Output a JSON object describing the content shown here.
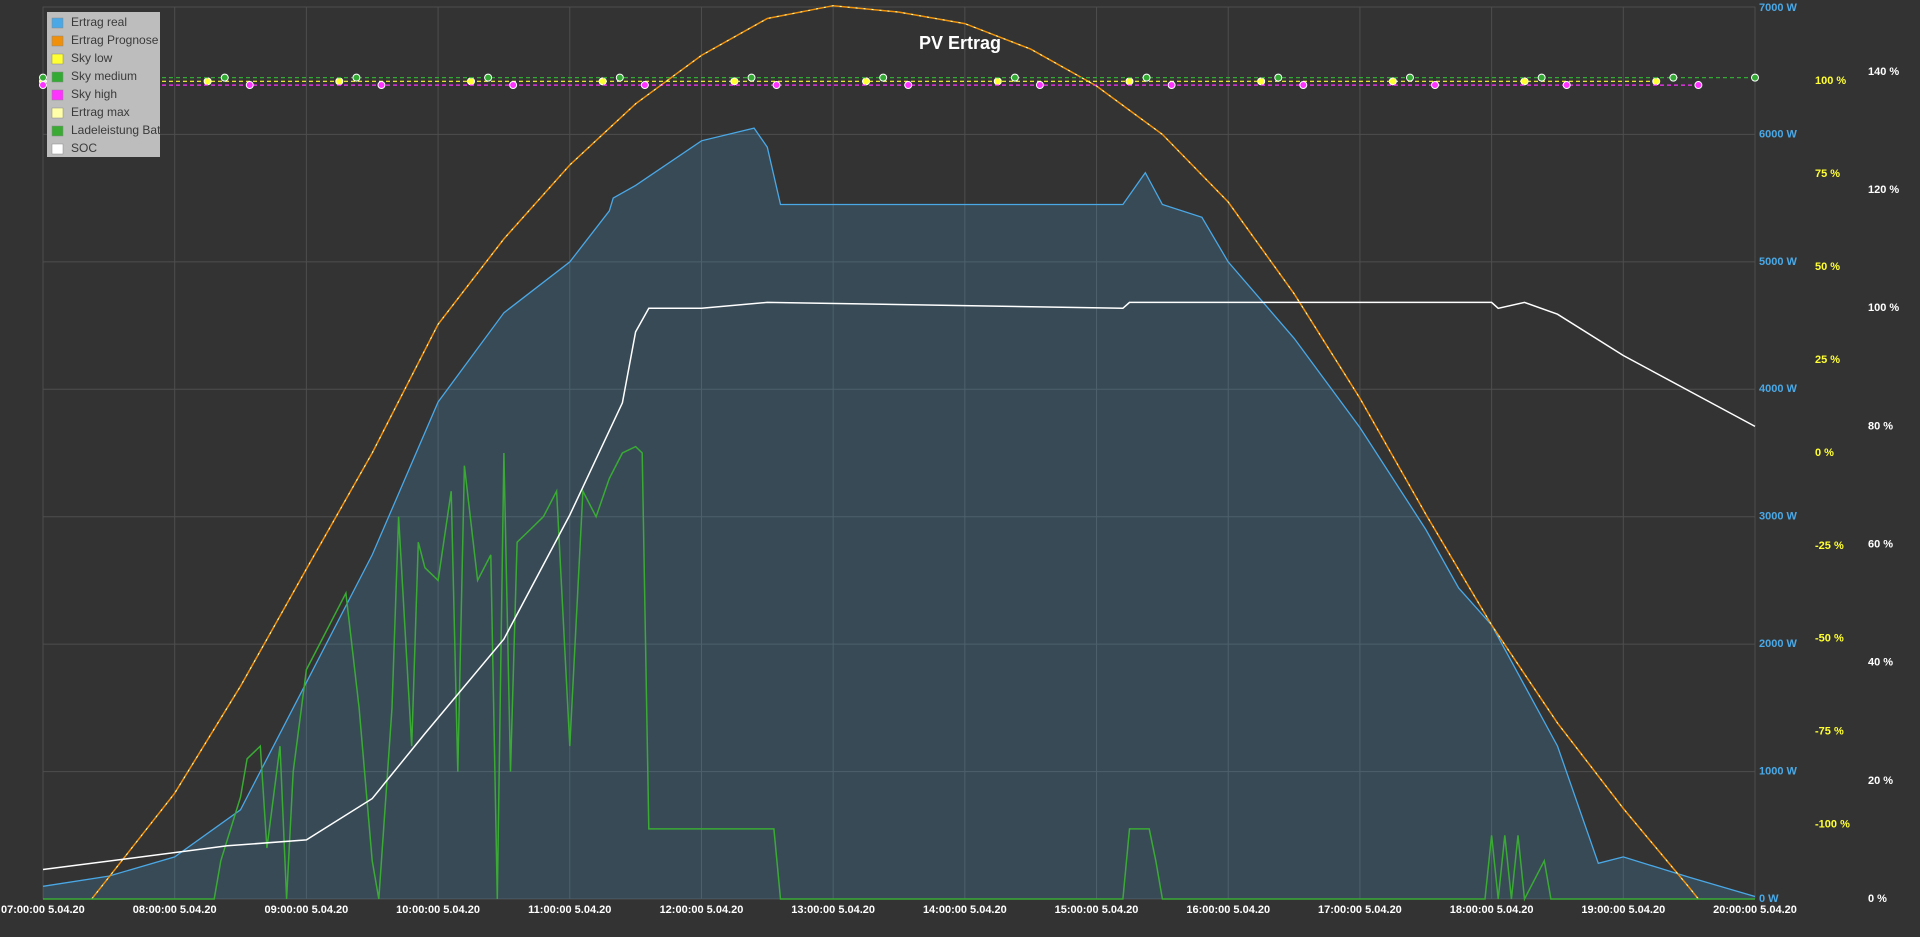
{
  "chart_data": {
    "type": "line",
    "title": "PV Ertrag",
    "xlim": [
      7,
      20
    ],
    "xticks": [
      {
        "value": 7,
        "label": "07:00:00 5.04.20"
      },
      {
        "value": 8,
        "label": "08:00:00 5.04.20"
      },
      {
        "value": 9,
        "label": "09:00:00 5.04.20"
      },
      {
        "value": 10,
        "label": "10:00:00 5.04.20"
      },
      {
        "value": 11,
        "label": "11:00:00 5.04.20"
      },
      {
        "value": 12,
        "label": "12:00:00 5.04.20"
      },
      {
        "value": 13,
        "label": "13:00:00 5.04.20"
      },
      {
        "value": 14,
        "label": "14:00:00 5.04.20"
      },
      {
        "value": 15,
        "label": "15:00:00 5.04.20"
      },
      {
        "value": 16,
        "label": "16:00:00 5.04.20"
      },
      {
        "value": 17,
        "label": "17:00:00 5.04.20"
      },
      {
        "value": 18,
        "label": "18:00:00 5.04.20"
      },
      {
        "value": 19,
        "label": "19:00:00 5.04.20"
      },
      {
        "value": 20,
        "label": "20:00:00 5.04.20"
      }
    ],
    "ylim": [
      0,
      7000
    ],
    "yticks": [
      {
        "value": 0,
        "label": "0 W"
      },
      {
        "value": 1000,
        "label": "1000 W"
      },
      {
        "value": 2000,
        "label": "2000 W"
      },
      {
        "value": 3000,
        "label": "3000 W"
      },
      {
        "value": 4000,
        "label": "4000 W"
      },
      {
        "value": 5000,
        "label": "5000 W"
      },
      {
        "value": 6000,
        "label": "6000 W"
      },
      {
        "value": 7000,
        "label": "7000 W"
      }
    ],
    "y2lim": [
      -120,
      120
    ],
    "y2ticks": [
      {
        "value": -100,
        "label": "-100 %"
      },
      {
        "value": -75,
        "label": "-75 %"
      },
      {
        "value": -50,
        "label": "-50 %"
      },
      {
        "value": -25,
        "label": "-25 %"
      },
      {
        "value": 0,
        "label": "0 %"
      },
      {
        "value": 25,
        "label": "25 %"
      },
      {
        "value": 50,
        "label": "50 %"
      },
      {
        "value": 75,
        "label": "75 %"
      },
      {
        "value": 100,
        "label": "100 %"
      }
    ],
    "y3lim": [
      0,
      151
    ],
    "y3ticks": [
      {
        "value": 0,
        "label": "0 %"
      },
      {
        "value": 20,
        "label": "20 %"
      },
      {
        "value": 40,
        "label": "40 %"
      },
      {
        "value": 60,
        "label": "60 %"
      },
      {
        "value": 80,
        "label": "80 %"
      },
      {
        "value": 100,
        "label": "100 %"
      },
      {
        "value": 120,
        "label": "120 %"
      },
      {
        "value": 140,
        "label": "140 %"
      }
    ],
    "grid": true,
    "legend": "top-left",
    "series": [
      {
        "name": "Ertrag real",
        "color": "#4aa8e6",
        "kind": "area",
        "x": [
          7,
          7.5,
          8,
          8.5,
          9,
          9.5,
          10,
          10.5,
          11,
          11.3,
          11.33,
          11.5,
          12,
          12.4,
          12.5,
          12.6,
          13,
          14,
          15,
          15.2,
          15.37,
          15.5,
          15.8,
          16,
          16.5,
          17,
          17.5,
          17.75,
          18,
          18.5,
          18.81,
          19,
          19.5,
          20
        ],
        "values": [
          100,
          180,
          330,
          700,
          1700,
          2700,
          3900,
          4600,
          5000,
          5400,
          5500,
          5600,
          5950,
          6050,
          5900,
          5450,
          5450,
          5450,
          5450,
          5450,
          5700,
          5450,
          5350,
          5000,
          4400,
          3700,
          2900,
          2440,
          2150,
          1200,
          280,
          330,
          170,
          20
        ]
      },
      {
        "name": "Ertrag Prognose",
        "color": "#f0900a",
        "kind": "line",
        "x": [
          7.37,
          7.5,
          8,
          8.5,
          9,
          9.5,
          10,
          10.5,
          11,
          11.5,
          12,
          12.5,
          13,
          13.5,
          14,
          14.5,
          15,
          15.5,
          16,
          16.5,
          17,
          17.5,
          18,
          18.5,
          19,
          19.5,
          19.57
        ],
        "values": [
          0,
          170,
          830,
          1670,
          2590,
          3500,
          4510,
          5180,
          5760,
          6240,
          6620,
          6910,
          7010,
          6960,
          6870,
          6670,
          6380,
          6000,
          5470,
          4750,
          3930,
          3020,
          2150,
          1380,
          710,
          90,
          0
        ]
      },
      {
        "name": "Sky low",
        "color": "#ffff33",
        "kind": "dots",
        "axis": "y2",
        "x": [
          7,
          8.25,
          9.25,
          10.25,
          11.25,
          12.25,
          13.25,
          14.25,
          15.25,
          16.25,
          17.25,
          18.25,
          19.25
        ],
        "values": [
          100,
          100,
          100,
          100,
          100,
          100,
          100,
          100,
          100,
          100,
          100,
          100,
          100
        ]
      },
      {
        "name": "Sky medium",
        "color": "#33aa33",
        "kind": "dots",
        "axis": "y2",
        "x": [
          7,
          8.38,
          9.38,
          10.38,
          11.38,
          12.38,
          13.38,
          14.38,
          15.38,
          16.38,
          17.38,
          18.38,
          19.38,
          20
        ],
        "values": [
          101,
          101,
          101,
          101,
          101,
          101,
          101,
          101,
          101,
          101,
          101,
          101,
          101,
          101
        ]
      },
      {
        "name": "Sky high",
        "color": "#ff33ff",
        "kind": "dots",
        "axis": "y2",
        "x": [
          7,
          8.57,
          9.57,
          10.57,
          11.57,
          12.57,
          13.57,
          14.57,
          15.57,
          16.57,
          17.57,
          18.57,
          19.57
        ],
        "values": [
          99,
          99,
          99,
          99,
          99,
          99,
          99,
          99,
          99,
          99,
          99,
          99,
          99
        ]
      },
      {
        "name": "Ertrag max",
        "color": "#ffffaa",
        "kind": "dashed",
        "x": [
          7.37,
          7.5,
          8,
          8.5,
          9,
          9.5,
          10,
          10.5,
          11,
          11.5,
          12,
          12.5,
          13,
          13.5,
          14,
          14.5,
          15,
          15.5,
          16,
          16.5,
          17,
          17.5,
          18,
          18.5,
          19,
          19.5,
          19.57
        ],
        "values": [
          0,
          170,
          830,
          1670,
          2590,
          3500,
          4510,
          5180,
          5760,
          6240,
          6620,
          6910,
          7010,
          6960,
          6870,
          6670,
          6380,
          6000,
          5470,
          4750,
          3930,
          3020,
          2150,
          1380,
          710,
          90,
          0
        ]
      },
      {
        "name": "Ladeleistung Bat",
        "color": "#3aaa35",
        "kind": "line",
        "x": [
          7,
          8.3,
          8.35,
          8.5,
          8.55,
          8.65,
          8.7,
          8.8,
          8.85,
          8.9,
          9.0,
          9.1,
          9.2,
          9.3,
          9.4,
          9.5,
          9.55,
          9.65,
          9.7,
          9.8,
          9.85,
          9.9,
          10.0,
          10.1,
          10.15,
          10.2,
          10.3,
          10.4,
          10.45,
          10.5,
          10.55,
          10.6,
          10.7,
          10.8,
          10.9,
          11.0,
          11.1,
          11.2,
          11.3,
          11.4,
          11.5,
          11.55,
          11.6,
          12.5,
          12.52,
          12.55,
          12.6,
          15.2,
          15.25,
          15.4,
          15.45,
          15.5,
          17.95,
          18.0,
          18.05,
          18.1,
          18.15,
          18.2,
          18.25,
          18.4,
          18.45,
          18.5,
          20
        ],
        "values": [
          0,
          0,
          300,
          800,
          1100,
          1200,
          400,
          1200,
          0,
          1000,
          1800,
          2000,
          2200,
          2400,
          1500,
          300,
          0,
          1500,
          3000,
          1200,
          2800,
          2600,
          2500,
          3200,
          1000,
          3400,
          2500,
          2700,
          0,
          3500,
          1000,
          2800,
          2900,
          3000,
          3200,
          1200,
          3200,
          3000,
          3300,
          3500,
          3550,
          3500,
          550,
          550,
          550,
          550,
          0,
          0,
          550,
          550,
          300,
          0,
          0,
          500,
          0,
          500,
          0,
          500,
          0,
          300,
          0,
          0,
          0
        ]
      },
      {
        "name": "SOC",
        "color": "#ffffff",
        "kind": "line",
        "axis": "y3",
        "x": [
          7,
          8.4,
          9.0,
          9.5,
          9.9,
          10.5,
          11.0,
          11.4,
          11.5,
          11.6,
          12.0,
          12.5,
          15.2,
          15.25,
          18.0,
          18.05,
          18.25,
          18.5,
          19.0,
          19.5,
          20
        ],
        "values": [
          5,
          9,
          10,
          17,
          28,
          44,
          65,
          84,
          96,
          100,
          100,
          101,
          100,
          101,
          101,
          100,
          101,
          99,
          92,
          86,
          80
        ]
      }
    ]
  }
}
